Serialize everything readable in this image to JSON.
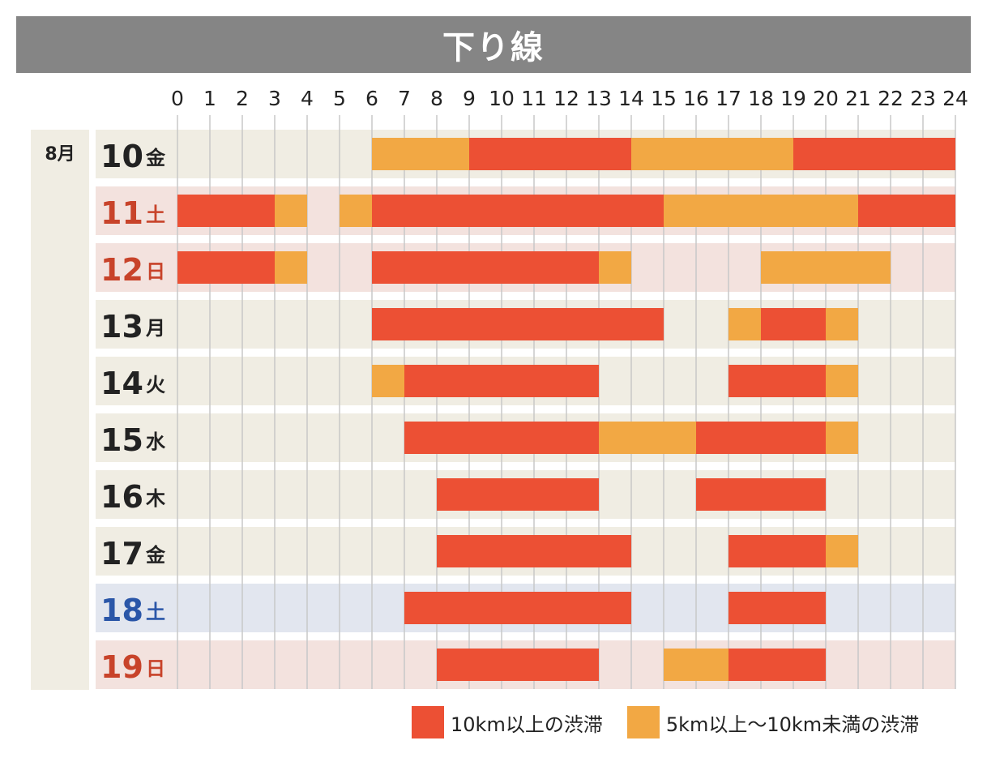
{
  "chart_data": {
    "type": "gantt",
    "title": "下り線",
    "month_label": "8月",
    "x_ticks": [
      "0",
      "1",
      "2",
      "3",
      "4",
      "5",
      "6",
      "7",
      "8",
      "9",
      "10",
      "11",
      "12",
      "13",
      "14",
      "15",
      "16",
      "17",
      "18",
      "19",
      "20",
      "21",
      "22",
      "23",
      "24"
    ],
    "x_range": [
      0,
      24
    ],
    "rows": [
      {
        "day": "10",
        "weekday": "金",
        "day_type": "weekday",
        "segments": [
          {
            "start": 6,
            "end": 9,
            "level": "moderate"
          },
          {
            "start": 9,
            "end": 14,
            "level": "heavy"
          },
          {
            "start": 14,
            "end": 19,
            "level": "moderate"
          },
          {
            "start": 19,
            "end": 24,
            "level": "heavy"
          }
        ]
      },
      {
        "day": "11",
        "weekday": "土",
        "day_type": "holiday",
        "segments": [
          {
            "start": 0,
            "end": 3,
            "level": "heavy"
          },
          {
            "start": 3,
            "end": 4,
            "level": "moderate"
          },
          {
            "start": 5,
            "end": 6,
            "level": "moderate"
          },
          {
            "start": 6,
            "end": 15,
            "level": "heavy"
          },
          {
            "start": 15,
            "end": 21,
            "level": "moderate"
          },
          {
            "start": 21,
            "end": 24,
            "level": "heavy"
          }
        ]
      },
      {
        "day": "12",
        "weekday": "日",
        "day_type": "holiday",
        "segments": [
          {
            "start": 0,
            "end": 3,
            "level": "heavy"
          },
          {
            "start": 3,
            "end": 4,
            "level": "moderate"
          },
          {
            "start": 6,
            "end": 13,
            "level": "heavy"
          },
          {
            "start": 13,
            "end": 14,
            "level": "moderate"
          },
          {
            "start": 18,
            "end": 22,
            "level": "moderate"
          }
        ]
      },
      {
        "day": "13",
        "weekday": "月",
        "day_type": "weekday",
        "segments": [
          {
            "start": 6,
            "end": 15,
            "level": "heavy"
          },
          {
            "start": 17,
            "end": 18,
            "level": "moderate"
          },
          {
            "start": 18,
            "end": 20,
            "level": "heavy"
          },
          {
            "start": 20,
            "end": 21,
            "level": "moderate"
          }
        ]
      },
      {
        "day": "14",
        "weekday": "火",
        "day_type": "weekday",
        "segments": [
          {
            "start": 6,
            "end": 7,
            "level": "moderate"
          },
          {
            "start": 7,
            "end": 13,
            "level": "heavy"
          },
          {
            "start": 17,
            "end": 20,
            "level": "heavy"
          },
          {
            "start": 20,
            "end": 21,
            "level": "moderate"
          }
        ]
      },
      {
        "day": "15",
        "weekday": "水",
        "day_type": "weekday",
        "segments": [
          {
            "start": 7,
            "end": 13,
            "level": "heavy"
          },
          {
            "start": 13,
            "end": 16,
            "level": "moderate"
          },
          {
            "start": 16,
            "end": 20,
            "level": "heavy"
          },
          {
            "start": 20,
            "end": 21,
            "level": "moderate"
          }
        ]
      },
      {
        "day": "16",
        "weekday": "木",
        "day_type": "weekday",
        "segments": [
          {
            "start": 8,
            "end": 13,
            "level": "heavy"
          },
          {
            "start": 16,
            "end": 20,
            "level": "heavy"
          }
        ]
      },
      {
        "day": "17",
        "weekday": "金",
        "day_type": "weekday",
        "segments": [
          {
            "start": 8,
            "end": 14,
            "level": "heavy"
          },
          {
            "start": 17,
            "end": 20,
            "level": "heavy"
          },
          {
            "start": 20,
            "end": 21,
            "level": "moderate"
          }
        ]
      },
      {
        "day": "18",
        "weekday": "土",
        "day_type": "saturday",
        "segments": [
          {
            "start": 7,
            "end": 14,
            "level": "heavy"
          },
          {
            "start": 17,
            "end": 20,
            "level": "heavy"
          }
        ]
      },
      {
        "day": "19",
        "weekday": "日",
        "day_type": "holiday",
        "segments": [
          {
            "start": 8,
            "end": 13,
            "level": "heavy"
          },
          {
            "start": 15,
            "end": 17,
            "level": "moderate"
          },
          {
            "start": 17,
            "end": 20,
            "level": "heavy"
          }
        ]
      }
    ],
    "legend": [
      {
        "key": "heavy",
        "label": "10km以上の渋滞",
        "color": "#ec5034"
      },
      {
        "key": "moderate",
        "label": "5km以上～10km未満の渋滞",
        "color": "#f2a844"
      }
    ]
  },
  "colors": {
    "weekday_bg": "#f0ede3",
    "holiday_bg": "#f3e2de",
    "saturday_bg": "#e2e6ef",
    "weekday_text": "#222222",
    "holiday_text": "#c8432a",
    "saturday_text": "#2a56a8",
    "gridline": "#c8c8c8"
  }
}
